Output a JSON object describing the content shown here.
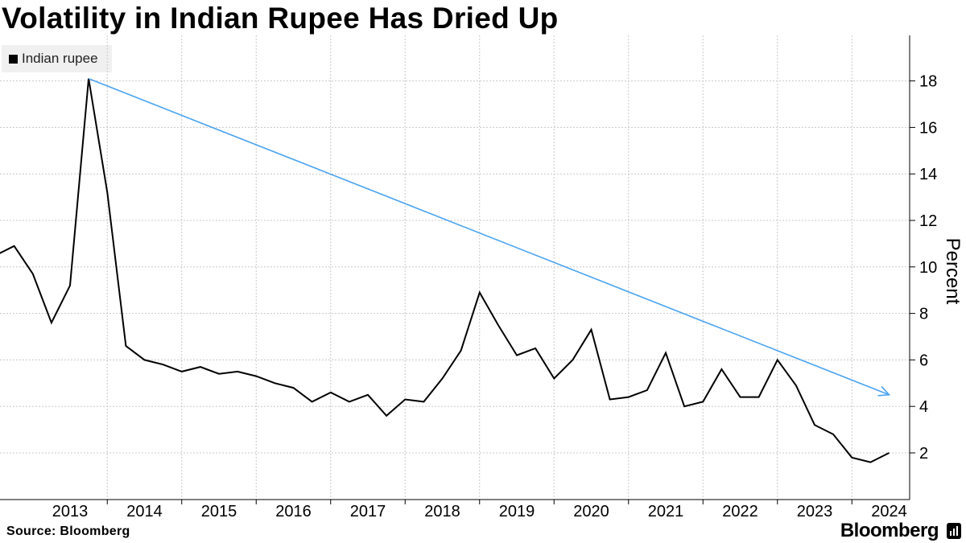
{
  "chart_data": {
    "type": "line",
    "title": "Volatility in Indian Rupee Has Dried Up",
    "ylabel": "Percent",
    "xlabel": "",
    "ylim": [
      0,
      20
    ],
    "yticks": [
      2,
      4,
      6,
      8,
      10,
      12,
      14,
      16,
      18
    ],
    "xlim": [
      2012.0,
      2024.35
    ],
    "xticks": [
      {
        "label": "2013",
        "pos": 2013.0
      },
      {
        "label": "2014",
        "pos": 2014.0
      },
      {
        "label": "2015",
        "pos": 2015.0
      },
      {
        "label": "2016",
        "pos": 2016.0
      },
      {
        "label": "2017",
        "pos": 2017.0
      },
      {
        "label": "2018",
        "pos": 2018.0
      },
      {
        "label": "2019",
        "pos": 2019.0
      },
      {
        "label": "2020",
        "pos": 2020.0
      },
      {
        "label": "2021",
        "pos": 2021.0
      },
      {
        "label": "2022",
        "pos": 2022.0
      },
      {
        "label": "2023",
        "pos": 2023.0
      },
      {
        "label": "2024",
        "pos": 2024.0
      }
    ],
    "gridlines": [
      2013.5,
      2014.5,
      2015.5,
      2016.5,
      2017.5,
      2018.5,
      2019.5,
      2020.5,
      2021.5,
      2022.5,
      2023.5
    ],
    "legend": "top-left",
    "series": [
      {
        "name": "Indian rupee",
        "color": "#000000",
        "x": [
          2012.0,
          2012.25,
          2012.5,
          2012.75,
          2013.0,
          2013.25,
          2013.5,
          2013.75,
          2014.0,
          2014.25,
          2014.5,
          2014.75,
          2015.0,
          2015.25,
          2015.5,
          2015.75,
          2016.0,
          2016.25,
          2016.5,
          2016.75,
          2017.0,
          2017.25,
          2017.5,
          2017.75,
          2018.0,
          2018.25,
          2018.5,
          2018.75,
          2019.0,
          2019.25,
          2019.5,
          2019.75,
          2020.0,
          2020.25,
          2020.5,
          2020.75,
          2021.0,
          2021.25,
          2021.5,
          2021.75,
          2022.0,
          2022.25,
          2022.5,
          2022.75,
          2023.0,
          2023.25,
          2023.5,
          2023.75,
          2024.0
        ],
        "values": [
          10.5,
          10.9,
          9.7,
          7.6,
          9.2,
          18.1,
          13.2,
          6.6,
          6.0,
          5.8,
          5.5,
          5.7,
          5.4,
          5.5,
          5.3,
          5.0,
          4.8,
          4.2,
          4.6,
          4.2,
          4.5,
          3.6,
          4.3,
          4.2,
          5.2,
          6.4,
          8.9,
          7.5,
          6.2,
          6.5,
          5.2,
          6.0,
          7.3,
          4.3,
          4.4,
          4.7,
          6.3,
          4.0,
          4.2,
          5.6,
          4.4,
          4.4,
          6.0,
          4.9,
          3.2,
          2.8,
          1.8,
          1.6,
          2.0
        ]
      }
    ],
    "annotations": [
      {
        "type": "arrow",
        "color": "#4aa3f0",
        "from": {
          "x": 2013.25,
          "y": 18.1
        },
        "to": {
          "x": 2024.0,
          "y": 4.5
        }
      }
    ]
  },
  "legend": {
    "label": "Indian rupee"
  },
  "footer": {
    "source": "Source: Bloomberg",
    "brand": "Bloomberg"
  }
}
